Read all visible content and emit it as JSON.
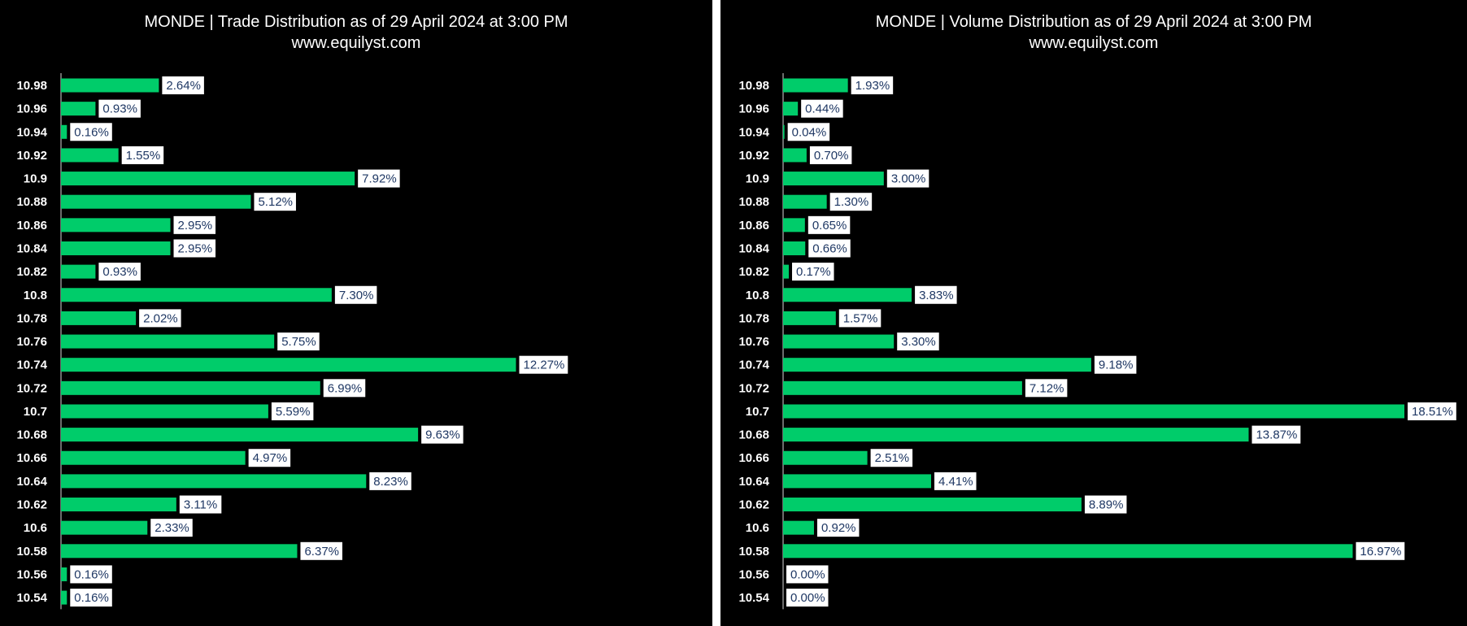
{
  "chart_data": [
    {
      "type": "bar",
      "orientation": "horizontal",
      "title": "MONDE | Trade Distribution as of 29 April 2024 at 3:00 PM",
      "subtitle": "www.equilyst.com",
      "categories": [
        "10.98",
        "10.96",
        "10.94",
        "10.92",
        "10.9",
        "10.88",
        "10.86",
        "10.84",
        "10.82",
        "10.8",
        "10.78",
        "10.76",
        "10.74",
        "10.72",
        "10.7",
        "10.68",
        "10.66",
        "10.64",
        "10.62",
        "10.6",
        "10.58",
        "10.56",
        "10.54"
      ],
      "values": [
        2.64,
        0.93,
        0.16,
        1.55,
        7.92,
        5.12,
        2.95,
        2.95,
        0.93,
        7.3,
        2.02,
        5.75,
        12.27,
        6.99,
        5.59,
        9.63,
        4.97,
        8.23,
        3.11,
        2.33,
        6.37,
        0.16,
        0.16
      ],
      "data_labels": [
        "2.64%",
        "0.93%",
        "0.16%",
        "1.55%",
        "7.92%",
        "5.12%",
        "2.95%",
        "2.95%",
        "0.93%",
        "7.30%",
        "2.02%",
        "5.75%",
        "12.27%",
        "6.99%",
        "5.59%",
        "9.63%",
        "4.97%",
        "8.23%",
        "3.11%",
        "2.33%",
        "6.37%",
        "0.16%",
        "0.16%"
      ],
      "xlim": [
        0,
        15
      ],
      "grid": false,
      "bar_color": "#00cc6a",
      "background": "#000000"
    },
    {
      "type": "bar",
      "orientation": "horizontal",
      "title": "MONDE | Volume Distribution as of 29 April 2024 at 3:00 PM",
      "subtitle": "www.equilyst.com",
      "categories": [
        "10.98",
        "10.96",
        "10.94",
        "10.92",
        "10.9",
        "10.88",
        "10.86",
        "10.84",
        "10.82",
        "10.8",
        "10.78",
        "10.76",
        "10.74",
        "10.72",
        "10.7",
        "10.68",
        "10.66",
        "10.64",
        "10.62",
        "10.6",
        "10.58",
        "10.56",
        "10.54"
      ],
      "values": [
        1.93,
        0.44,
        0.04,
        0.7,
        3.0,
        1.3,
        0.65,
        0.66,
        0.17,
        3.83,
        1.57,
        3.3,
        9.18,
        7.12,
        18.51,
        13.87,
        2.51,
        4.41,
        8.89,
        0.92,
        16.97,
        0.0,
        0.0
      ],
      "data_labels": [
        "1.93%",
        "0.44%",
        "0.04%",
        "0.70%",
        "3.00%",
        "1.30%",
        "0.65%",
        "0.66%",
        "0.17%",
        "3.83%",
        "1.57%",
        "3.30%",
        "9.18%",
        "7.12%",
        "18.51%",
        "13.87%",
        "2.51%",
        "4.41%",
        "8.89%",
        "0.92%",
        "16.97%",
        "0.00%",
        "0.00%"
      ],
      "xlim": [
        0,
        18.51
      ],
      "grid": false,
      "bar_color": "#00cc6a",
      "background": "#000000"
    }
  ]
}
